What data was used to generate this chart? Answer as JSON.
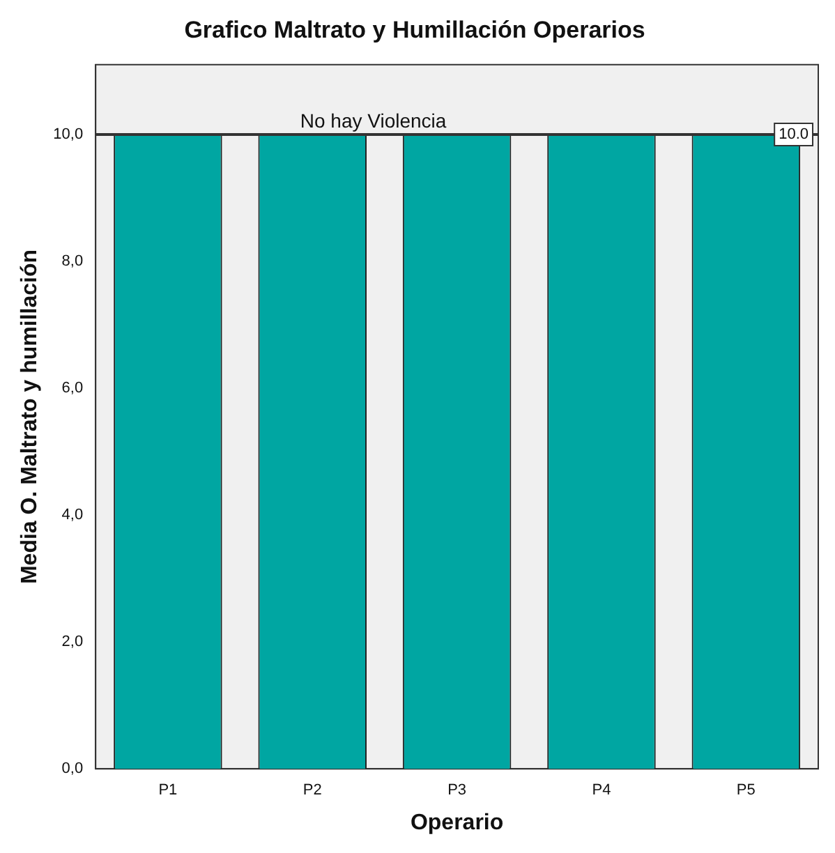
{
  "chart_data": {
    "type": "bar",
    "title": "Grafico Maltrato y Humillación Operarios",
    "xlabel": "Operario",
    "ylabel": "Media O. Maltrato y humillación",
    "categories": [
      "P1",
      "P2",
      "P3",
      "P4",
      "P5"
    ],
    "values": [
      10,
      10,
      10,
      10,
      10
    ],
    "color": "#00a6a2",
    "ylim": [
      0,
      11.1
    ],
    "yticks": [
      {
        "value": 0,
        "label": "0,0"
      },
      {
        "value": 2,
        "label": "2,0"
      },
      {
        "value": 4,
        "label": "4,0"
      },
      {
        "value": 6,
        "label": "6,0"
      },
      {
        "value": 8,
        "label": "8,0"
      },
      {
        "value": 10,
        "label": "10,0"
      }
    ],
    "grid": false,
    "legend": false,
    "ref_lines": [
      {
        "axis": "y",
        "value": 10,
        "label": "No hay Violencia",
        "color": "#333333"
      }
    ],
    "annotations": [
      {
        "text": "10.0",
        "y": 10
      }
    ]
  }
}
